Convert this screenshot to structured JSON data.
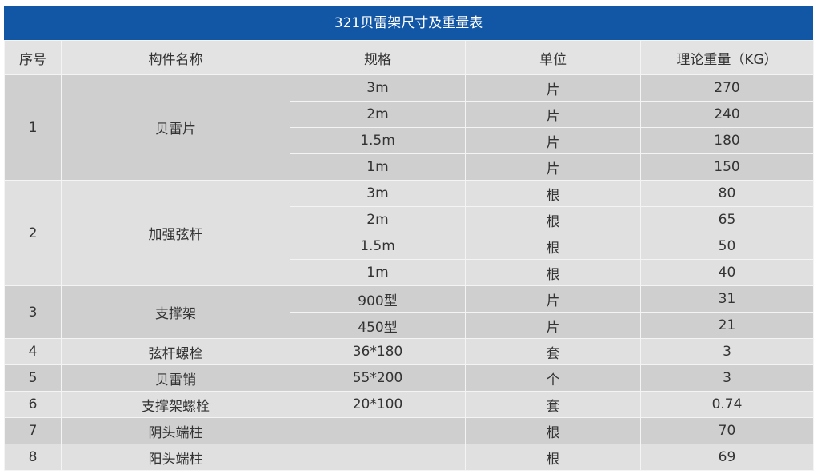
{
  "title": "321贝雷架尺寸及重量表",
  "headers": [
    "序号",
    "构件名称",
    "规格",
    "单位",
    "理论重量（KG）"
  ],
  "groups": [
    {
      "no": "1",
      "name": "贝雷片",
      "rows": [
        {
          "spec": "3m",
          "unit": "片",
          "weight": "270"
        },
        {
          "spec": "2m",
          "unit": "片",
          "weight": "240"
        },
        {
          "spec": "1.5m",
          "unit": "片",
          "weight": "180"
        },
        {
          "spec": "1m",
          "unit": "片",
          "weight": "150"
        }
      ]
    },
    {
      "no": "2",
      "name": "加强弦杆",
      "rows": [
        {
          "spec": "3m",
          "unit": "根",
          "weight": "80"
        },
        {
          "spec": "2m",
          "unit": "根",
          "weight": "65"
        },
        {
          "spec": "1.5m",
          "unit": "根",
          "weight": "50"
        },
        {
          "spec": "1m",
          "unit": "根",
          "weight": "40"
        }
      ]
    },
    {
      "no": "3",
      "name": "支撑架",
      "rows": [
        {
          "spec": "900型",
          "unit": "片",
          "weight": "31"
        },
        {
          "spec": "450型",
          "unit": "片",
          "weight": "21"
        }
      ]
    },
    {
      "no": "4",
      "name": "弦杆螺栓",
      "rows": [
        {
          "spec": "36*180",
          "unit": "套",
          "weight": "3"
        }
      ]
    },
    {
      "no": "5",
      "name": "贝雷销",
      "rows": [
        {
          "spec": "55*200",
          "unit": "个",
          "weight": "3"
        }
      ]
    },
    {
      "no": "6",
      "name": "支撑架螺栓",
      "rows": [
        {
          "spec": "20*100",
          "unit": "套",
          "weight": "0.74"
        }
      ]
    },
    {
      "no": "7",
      "name": "阴头端柱",
      "rows": [
        {
          "spec": "",
          "unit": "根",
          "weight": "70"
        }
      ]
    },
    {
      "no": "8",
      "name": "阳头端柱",
      "rows": [
        {
          "spec": "",
          "unit": "根",
          "weight": "69"
        }
      ]
    }
  ]
}
